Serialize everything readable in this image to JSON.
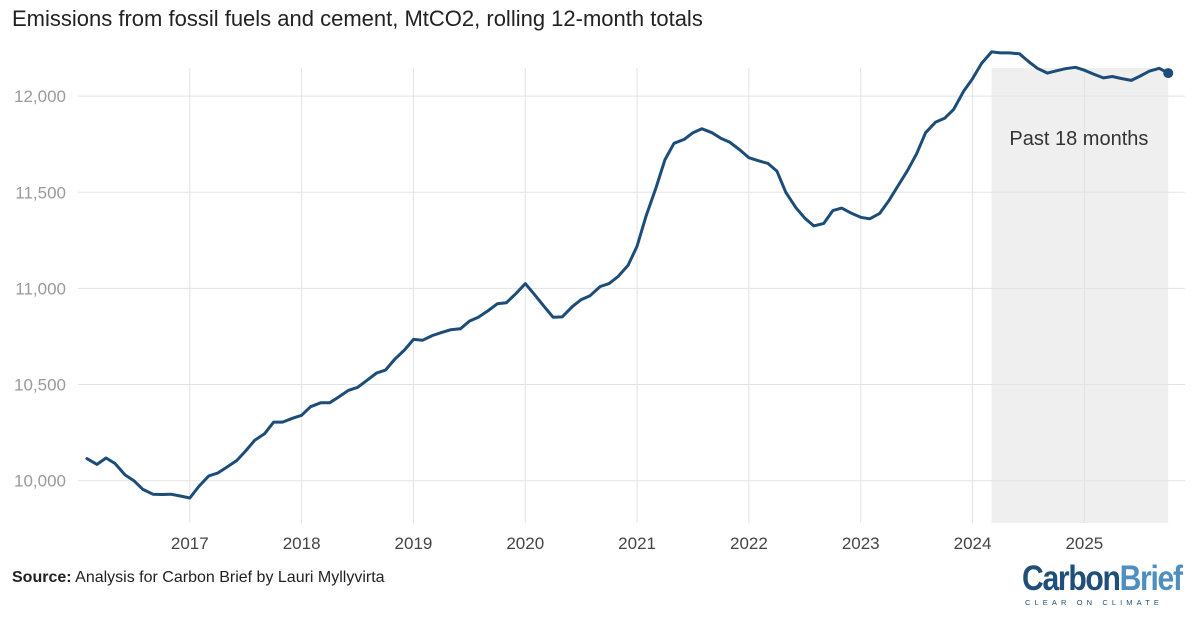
{
  "chart_data": {
    "type": "line",
    "title": "Emissions from fossil fuels and cement, MtCO2, rolling 12-month totals",
    "xlabel": "",
    "ylabel": "",
    "ylim": [
      9780,
      12240
    ],
    "xlim": [
      2016.0,
      2025.9
    ],
    "yticks": [
      10000,
      10500,
      11000,
      11500,
      12000
    ],
    "ytick_labels": [
      "10,000",
      "10,500",
      "11,000",
      "11,500",
      "12,000"
    ],
    "xticks": [
      2017,
      2018,
      2019,
      2020,
      2021,
      2022,
      2023,
      2024,
      2025
    ],
    "xtick_labels": [
      "2017",
      "2018",
      "2019",
      "2020",
      "2021",
      "2022",
      "2023",
      "2024",
      "2025"
    ],
    "grid": true,
    "series": [
      {
        "name": "Emissions from fossil fuels and cement",
        "color": "#1b4d78",
        "end_marker": true,
        "points": [
          [
            2016.08,
            10115
          ],
          [
            2016.17,
            10085
          ],
          [
            2016.25,
            10118
          ],
          [
            2016.33,
            10090
          ],
          [
            2016.42,
            10030
          ],
          [
            2016.5,
            10000
          ],
          [
            2016.58,
            9955
          ],
          [
            2016.67,
            9930
          ],
          [
            2016.75,
            9928
          ],
          [
            2016.83,
            9930
          ],
          [
            2016.92,
            9920
          ],
          [
            2017.0,
            9910
          ],
          [
            2017.08,
            9970
          ],
          [
            2017.17,
            10025
          ],
          [
            2017.25,
            10040
          ],
          [
            2017.33,
            10070
          ],
          [
            2017.42,
            10105
          ],
          [
            2017.5,
            10155
          ],
          [
            2017.58,
            10210
          ],
          [
            2017.67,
            10245
          ],
          [
            2017.75,
            10305
          ],
          [
            2017.83,
            10305
          ],
          [
            2017.92,
            10325
          ],
          [
            2018.0,
            10340
          ],
          [
            2018.08,
            10385
          ],
          [
            2018.17,
            10405
          ],
          [
            2018.25,
            10405
          ],
          [
            2018.33,
            10435
          ],
          [
            2018.42,
            10470
          ],
          [
            2018.5,
            10485
          ],
          [
            2018.58,
            10520
          ],
          [
            2018.67,
            10560
          ],
          [
            2018.75,
            10575
          ],
          [
            2018.83,
            10630
          ],
          [
            2018.92,
            10680
          ],
          [
            2019.0,
            10735
          ],
          [
            2019.08,
            10730
          ],
          [
            2019.17,
            10755
          ],
          [
            2019.25,
            10770
          ],
          [
            2019.33,
            10785
          ],
          [
            2019.42,
            10790
          ],
          [
            2019.5,
            10830
          ],
          [
            2019.58,
            10850
          ],
          [
            2019.67,
            10885
          ],
          [
            2019.75,
            10920
          ],
          [
            2019.83,
            10925
          ],
          [
            2019.92,
            10975
          ],
          [
            2020.0,
            11025
          ],
          [
            2020.08,
            10970
          ],
          [
            2020.17,
            10905
          ],
          [
            2020.25,
            10850
          ],
          [
            2020.33,
            10852
          ],
          [
            2020.42,
            10905
          ],
          [
            2020.5,
            10942
          ],
          [
            2020.58,
            10962
          ],
          [
            2020.67,
            11010
          ],
          [
            2020.75,
            11025
          ],
          [
            2020.83,
            11062
          ],
          [
            2020.92,
            11120
          ],
          [
            2021.0,
            11220
          ],
          [
            2021.08,
            11375
          ],
          [
            2021.17,
            11525
          ],
          [
            2021.25,
            11670
          ],
          [
            2021.33,
            11755
          ],
          [
            2021.42,
            11775
          ],
          [
            2021.5,
            11810
          ],
          [
            2021.58,
            11830
          ],
          [
            2021.67,
            11810
          ],
          [
            2021.75,
            11780
          ],
          [
            2021.83,
            11760
          ],
          [
            2021.92,
            11720
          ],
          [
            2022.0,
            11680
          ],
          [
            2022.08,
            11665
          ],
          [
            2022.17,
            11650
          ],
          [
            2022.25,
            11610
          ],
          [
            2022.33,
            11500
          ],
          [
            2022.42,
            11420
          ],
          [
            2022.5,
            11365
          ],
          [
            2022.58,
            11325
          ],
          [
            2022.67,
            11338
          ],
          [
            2022.75,
            11405
          ],
          [
            2022.83,
            11418
          ],
          [
            2022.92,
            11390
          ],
          [
            2023.0,
            11370
          ],
          [
            2023.08,
            11362
          ],
          [
            2023.17,
            11390
          ],
          [
            2023.25,
            11455
          ],
          [
            2023.33,
            11530
          ],
          [
            2023.42,
            11615
          ],
          [
            2023.5,
            11700
          ],
          [
            2023.58,
            11810
          ],
          [
            2023.67,
            11865
          ],
          [
            2023.75,
            11885
          ],
          [
            2023.83,
            11930
          ],
          [
            2023.92,
            12025
          ],
          [
            2024.0,
            12090
          ],
          [
            2024.08,
            12170
          ],
          [
            2024.17,
            12230
          ],
          [
            2024.25,
            12225
          ],
          [
            2024.33,
            12225
          ],
          [
            2024.42,
            12220
          ],
          [
            2024.5,
            12180
          ],
          [
            2024.58,
            12145
          ],
          [
            2024.67,
            12120
          ],
          [
            2024.75,
            12132
          ],
          [
            2024.83,
            12143
          ],
          [
            2024.92,
            12150
          ],
          [
            2025.0,
            12135
          ],
          [
            2025.08,
            12115
          ],
          [
            2025.17,
            12095
          ],
          [
            2025.25,
            12102
          ],
          [
            2025.33,
            12092
          ],
          [
            2025.42,
            12082
          ],
          [
            2025.5,
            12105
          ],
          [
            2025.58,
            12130
          ],
          [
            2025.67,
            12145
          ],
          [
            2025.75,
            12120
          ]
        ]
      }
    ],
    "shaded_region": {
      "x_start": 2024.17,
      "x_end": 2025.75,
      "label": "Past 18 months",
      "color": "#efefef"
    }
  },
  "source": {
    "label": "Source:",
    "text": " Analysis for Carbon Brief by Lauri Myllyvirta"
  },
  "logo": {
    "part1": "Carbon",
    "part2": "Brief",
    "tagline": "CLEAR ON CLIMATE"
  }
}
